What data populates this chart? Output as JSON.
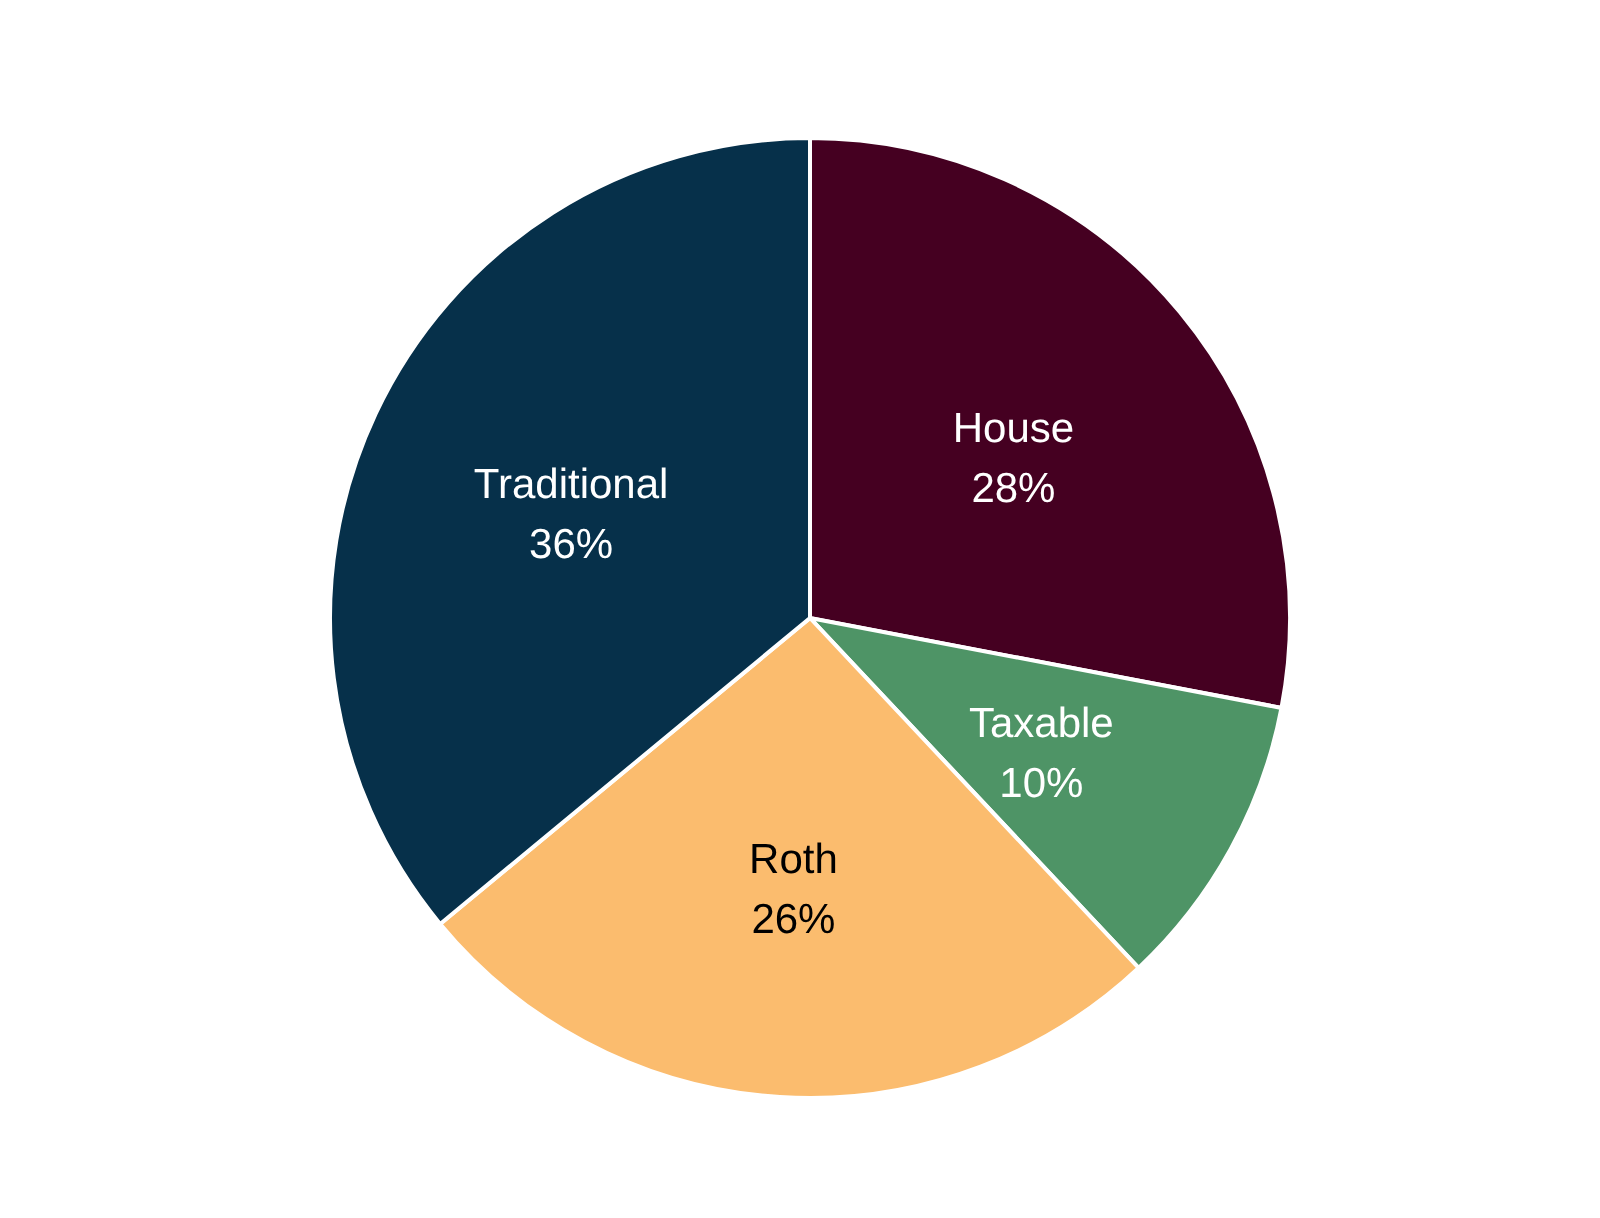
{
  "chart_data": {
    "type": "pie",
    "categories": [
      "House",
      "Taxable",
      "Roth",
      "Traditional"
    ],
    "values": [
      28,
      10,
      26,
      36
    ],
    "value_labels": [
      "28%",
      "10%",
      "26%",
      "36%"
    ],
    "colors": [
      "#450021",
      "#4e9466",
      "#fbbc6e",
      "#06304a"
    ]
  }
}
